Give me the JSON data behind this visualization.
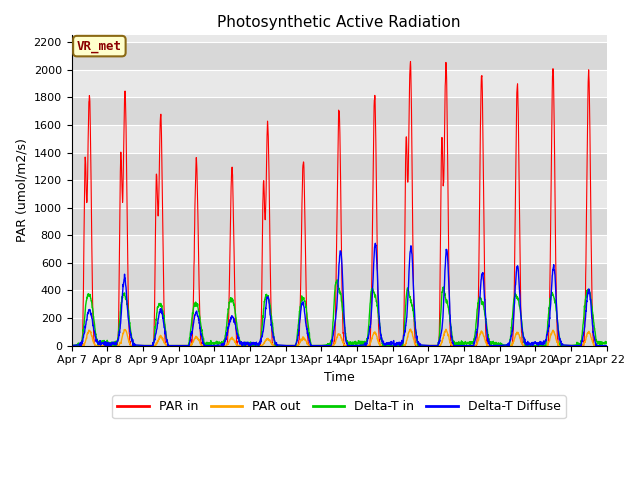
{
  "title": "Photosynthetic Active Radiation",
  "ylabel": "PAR (umol/m2/s)",
  "xlabel": "Time",
  "annotation": "VR_met",
  "ylim": [
    0,
    2250
  ],
  "legend_labels": [
    "PAR in",
    "PAR out",
    "Delta-T in",
    "Delta-T Diffuse"
  ],
  "legend_colors": [
    "#ff0000",
    "#ffa500",
    "#00cc00",
    "#0000ff"
  ],
  "x_tick_labels": [
    "Apr 7",
    "Apr 8",
    "Apr 9",
    "Apr 10",
    "Apr 11",
    "Apr 12",
    "Apr 13",
    "Apr 14",
    "Apr 15",
    "Apr 16",
    "Apr 17",
    "Apr 18",
    "Apr 19",
    "Apr 20",
    "Apr 21",
    "Apr 22"
  ],
  "y_ticks": [
    0,
    200,
    400,
    600,
    800,
    1000,
    1200,
    1400,
    1600,
    1800,
    2000,
    2200
  ],
  "title_fontsize": 11,
  "axis_fontsize": 9,
  "tick_fontsize": 8,
  "grid_color": "#d8d8d8",
  "plot_bg": "#e8e8e8"
}
